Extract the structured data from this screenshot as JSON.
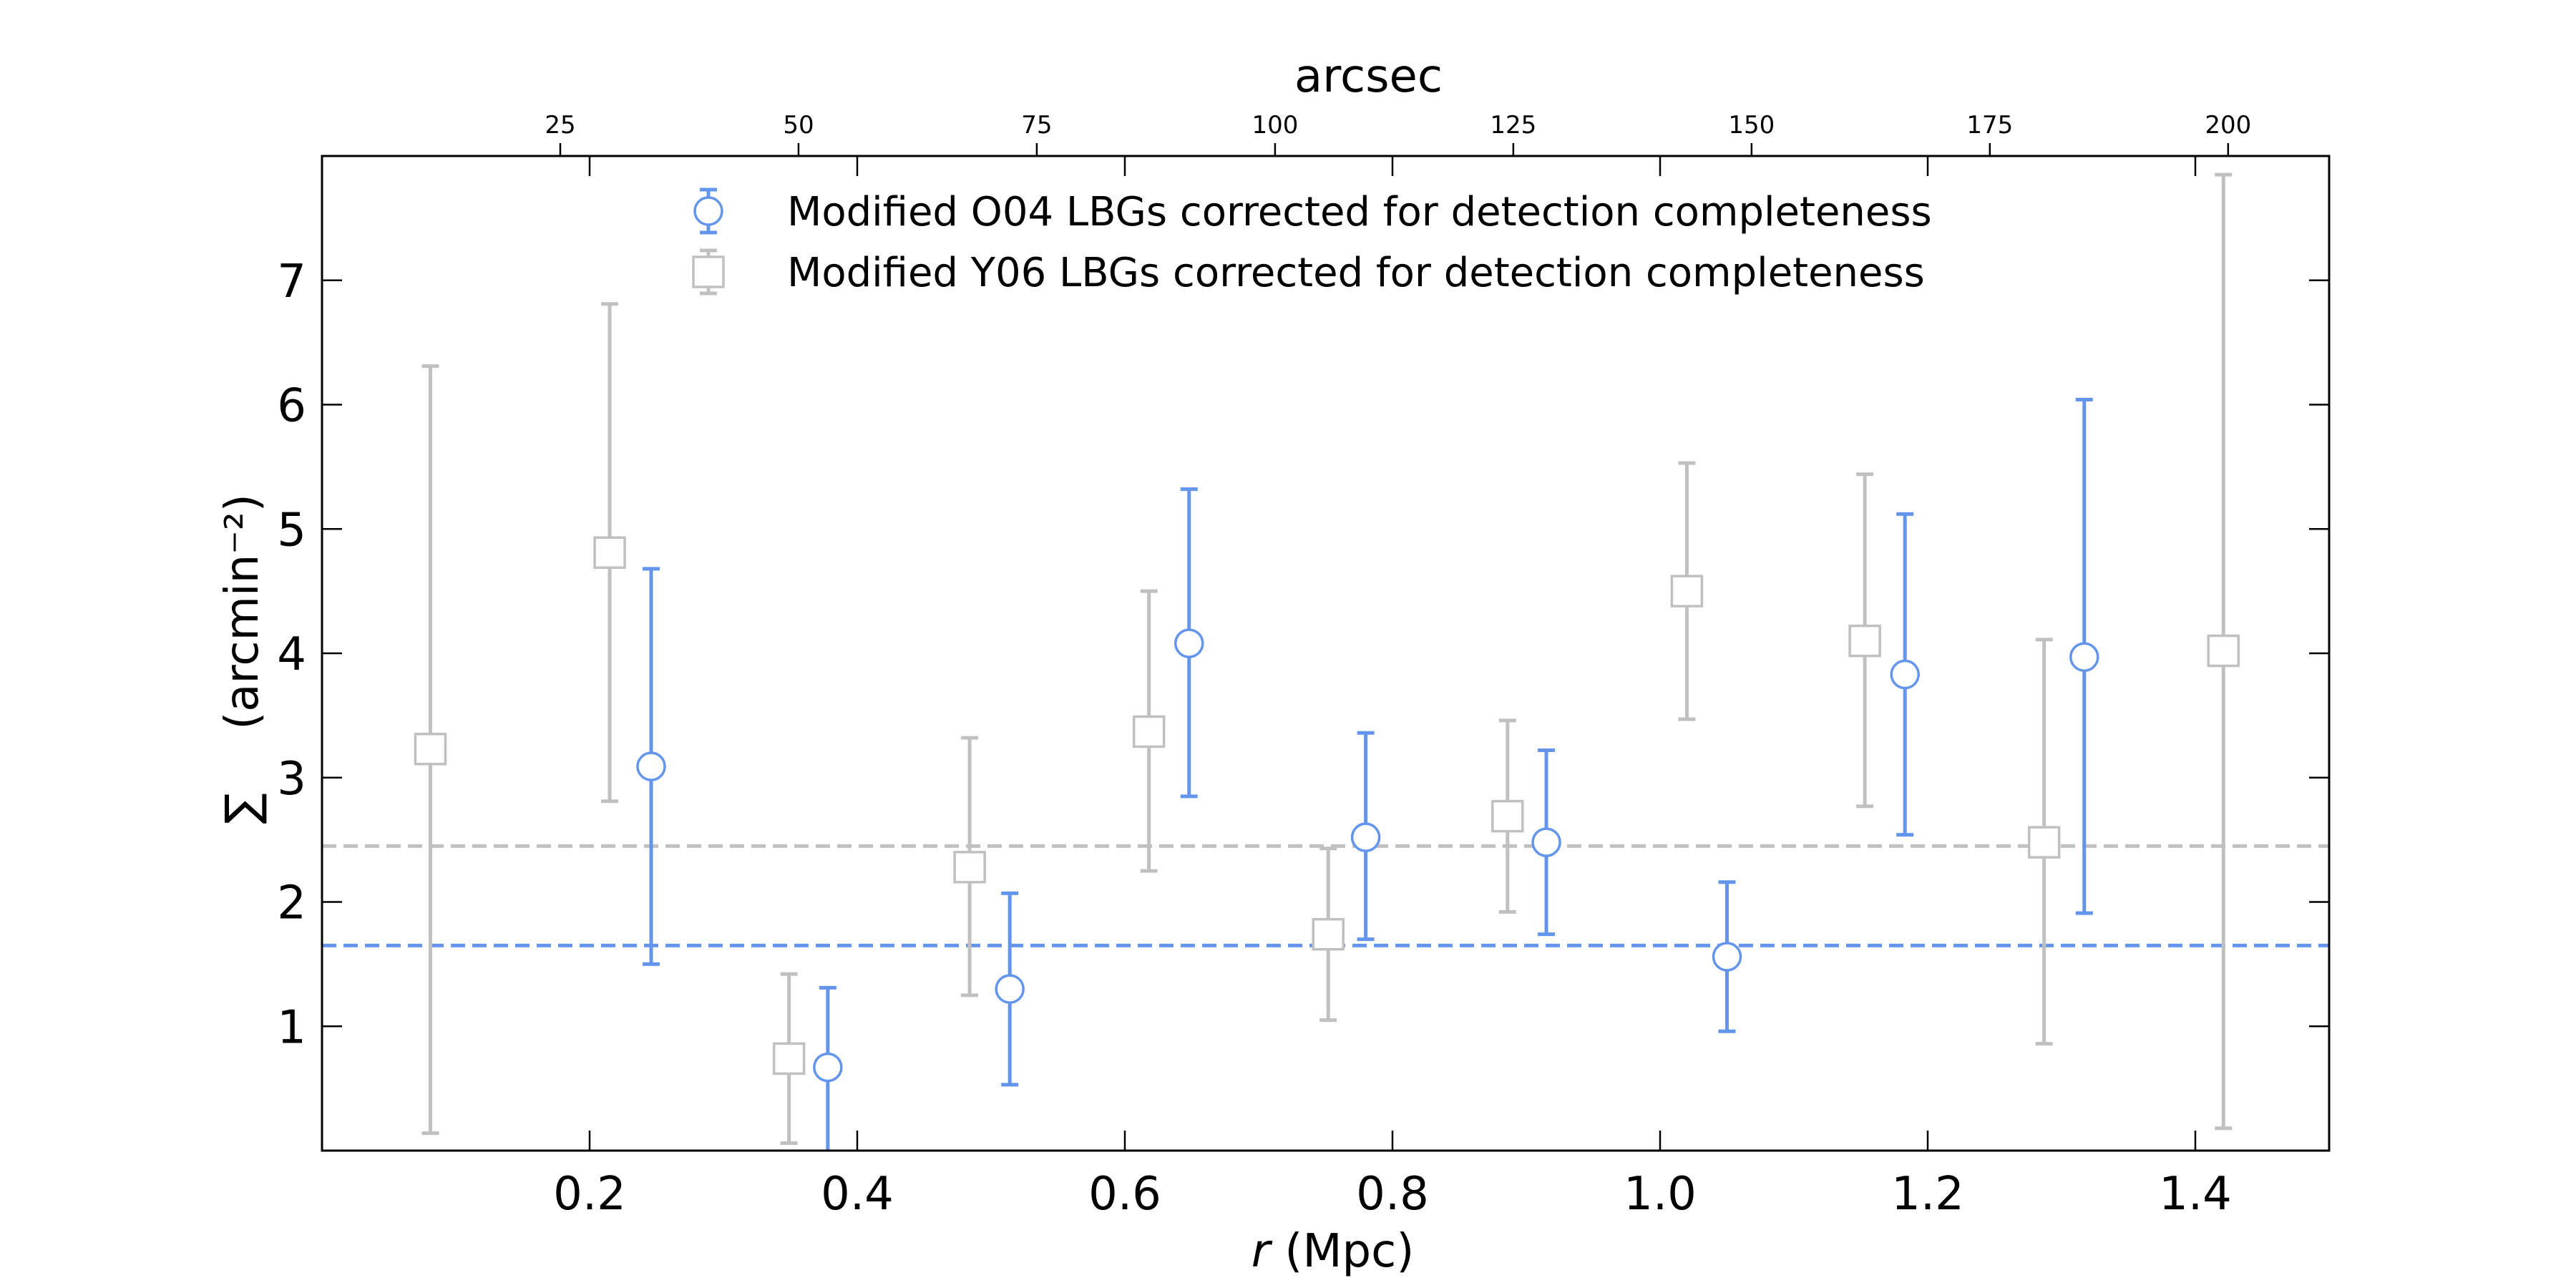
{
  "chart_data": {
    "type": "scatter",
    "title": "",
    "xlabel_italic": "r",
    "xlabel_rest": " (Mpc)",
    "ylabel_symbol": "∑",
    "ylabel_rest": "(arcmin⁻²)",
    "top_xlabel": "arcsec",
    "xlim": [
      0,
      1.5
    ],
    "ylim": [
      0,
      8
    ],
    "x_ticks": [
      0.2,
      0.4,
      0.6,
      0.8,
      1.0,
      1.2,
      1.4
    ],
    "x_tick_labels": [
      "0.2",
      "0.4",
      "0.6",
      "0.8",
      "1.0",
      "1.2",
      "1.4"
    ],
    "y_ticks": [
      1,
      2,
      3,
      4,
      5,
      6,
      7
    ],
    "y_tick_labels": [
      "1",
      "2",
      "3",
      "4",
      "5",
      "6",
      "7"
    ],
    "top_ticks_arcsec": [
      25,
      50,
      75,
      100,
      125,
      150,
      175,
      200
    ],
    "top_tick_labels": [
      "25",
      "50",
      "75",
      "100",
      "125",
      "150",
      "175",
      "200"
    ],
    "arcsec_per_mpc": 140.4,
    "legend_position": "top-center",
    "series": [
      {
        "name": "Modified O04 LBGs corrected for detection completeness",
        "marker": "circle",
        "color": "#6495ED",
        "mean_line": 1.65,
        "points": [
          {
            "x": 0.246,
            "y": 3.09,
            "lo": 1.5,
            "hi": 4.68
          },
          {
            "x": 0.378,
            "y": 0.67,
            "lo": 0.0,
            "hi": 1.31
          },
          {
            "x": 0.514,
            "y": 1.3,
            "lo": 0.53,
            "hi": 2.07
          },
          {
            "x": 0.648,
            "y": 4.08,
            "lo": 2.85,
            "hi": 5.32
          },
          {
            "x": 0.78,
            "y": 2.52,
            "lo": 1.7,
            "hi": 3.36
          },
          {
            "x": 0.915,
            "y": 2.48,
            "lo": 1.74,
            "hi": 3.22
          },
          {
            "x": 1.05,
            "y": 1.56,
            "lo": 0.96,
            "hi": 2.16
          },
          {
            "x": 1.183,
            "y": 3.83,
            "lo": 2.54,
            "hi": 5.12
          },
          {
            "x": 1.317,
            "y": 3.97,
            "lo": 1.91,
            "hi": 6.04
          }
        ]
      },
      {
        "name": "Modified Y06 LBGs corrected for detection completeness",
        "marker": "square",
        "color": "#C0C0C0",
        "mean_line": 2.45,
        "points": [
          {
            "x": 0.081,
            "y": 3.23,
            "lo": 0.14,
            "hi": 6.31
          },
          {
            "x": 0.215,
            "y": 4.81,
            "lo": 2.81,
            "hi": 6.81
          },
          {
            "x": 0.349,
            "y": 0.74,
            "lo": 0.06,
            "hi": 1.42
          },
          {
            "x": 0.484,
            "y": 2.28,
            "lo": 1.25,
            "hi": 3.32
          },
          {
            "x": 0.618,
            "y": 3.37,
            "lo": 2.25,
            "hi": 4.5
          },
          {
            "x": 0.752,
            "y": 1.74,
            "lo": 1.05,
            "hi": 2.43
          },
          {
            "x": 0.886,
            "y": 2.69,
            "lo": 1.92,
            "hi": 3.46
          },
          {
            "x": 1.02,
            "y": 4.5,
            "lo": 3.47,
            "hi": 5.53
          },
          {
            "x": 1.153,
            "y": 4.1,
            "lo": 2.77,
            "hi": 5.44
          },
          {
            "x": 1.287,
            "y": 2.48,
            "lo": 0.86,
            "hi": 4.11
          },
          {
            "x": 1.421,
            "y": 4.02,
            "lo": 0.18,
            "hi": 7.85
          }
        ]
      }
    ]
  }
}
